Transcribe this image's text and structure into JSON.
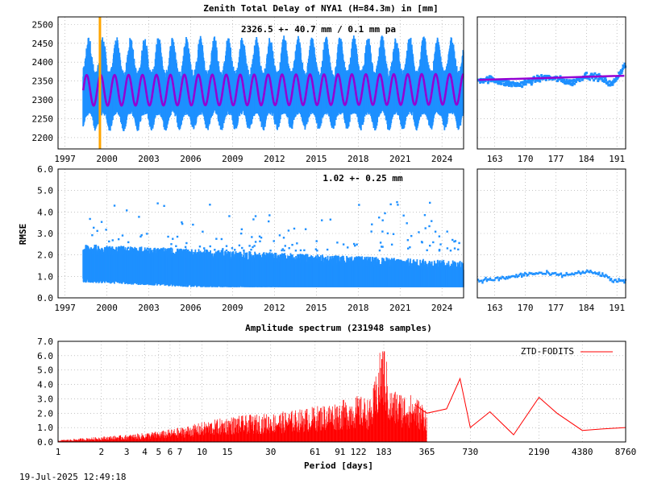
{
  "title": "Zenith Total Delay of NYA1 (H=84.3m) in [mm]",
  "timestamp": "19-Jul-2025 12:49:18",
  "colors": {
    "data": "#1e90ff",
    "fit": "#9400d3",
    "marker": "#ffa500",
    "spectrum": "#ff0000",
    "grid": "#a0a0a0"
  },
  "chart_data": [
    {
      "type": "scatter",
      "name": "ztd-timeseries",
      "annotation": "2326.5 +-  40.7 mm /  0.1 mm pa",
      "x_ticks": [
        "1997",
        "2000",
        "2003",
        "2006",
        "2009",
        "2012",
        "2015",
        "2018",
        "2021",
        "2024"
      ],
      "x_range": [
        1996.5,
        2025.55
      ],
      "y_ticks": [
        "2200",
        "2250",
        "2300",
        "2350",
        "2400",
        "2450",
        "2500"
      ],
      "ylim": [
        2170,
        2520
      ],
      "fit": {
        "mean": 2326.5,
        "amplitude": 40.7,
        "trend_mm_per_year": 0.1
      },
      "data_start": 1998.3,
      "vertical_marker_x": 1999.5,
      "grid": true
    },
    {
      "type": "scatter",
      "name": "ztd-recent",
      "x_ticks": [
        "163",
        "170",
        "177",
        "184",
        "191"
      ],
      "x_range": [
        159,
        193
      ],
      "values_approx": [
        2352,
        2355,
        2345,
        2340,
        2350,
        2360,
        2355,
        2345,
        2365,
        2360,
        2340,
        2395
      ],
      "grid": true
    },
    {
      "type": "scatter",
      "name": "rmse-timeseries",
      "ylabel": "RMSE",
      "annotation": "1.02 +-  0.25 mm",
      "x_ticks": [
        "1997",
        "2000",
        "2003",
        "2006",
        "2009",
        "2012",
        "2015",
        "2018",
        "2021",
        "2024"
      ],
      "x_range": [
        1996.5,
        2025.55
      ],
      "y_ticks": [
        "0.0",
        "1.0",
        "2.0",
        "3.0",
        "4.0",
        "5.0",
        "6.0"
      ],
      "ylim": [
        0,
        6
      ],
      "mean": 1.02,
      "std": 0.25,
      "grid": true
    },
    {
      "type": "line",
      "name": "rmse-recent",
      "x_ticks": [
        "163",
        "170",
        "177",
        "184",
        "191"
      ],
      "x_range": [
        159,
        193
      ],
      "values_approx": [
        0.8,
        0.85,
        0.9,
        1.0,
        1.1,
        1.15,
        1.1,
        1.05,
        1.15,
        1.2,
        1.1,
        0.8,
        0.75
      ],
      "grid": true
    },
    {
      "type": "line",
      "name": "amplitude-spectrum",
      "title": "Amplitude spectrum (231948 samples)",
      "xlabel": "Period [days]",
      "legend": "ZTD-FODITS",
      "legend_position": "top-right",
      "x_scale": "log",
      "x_ticks": [
        "1",
        "2",
        "3",
        "4",
        "5",
        "6",
        "7",
        "10",
        "15",
        "30",
        "61",
        "91",
        "122",
        "183",
        "365",
        "730",
        "2190",
        "4380",
        "8760"
      ],
      "x_range": [
        1,
        8760
      ],
      "y_ticks": [
        "0.0",
        "1.0",
        "2.0",
        "3.0",
        "4.0",
        "5.0",
        "6.0",
        "7.0"
      ],
      "ylim": [
        0,
        7
      ],
      "x": [
        1,
        2,
        3,
        5,
        7,
        10,
        15,
        20,
        30,
        45,
        61,
        91,
        122,
        150,
        183,
        200,
        300,
        365,
        500,
        620,
        730,
        1000,
        1460,
        2190,
        2920,
        4380,
        6000,
        8760
      ],
      "values": [
        0.1,
        0.3,
        0.4,
        0.6,
        0.8,
        1.1,
        1.4,
        1.5,
        1.6,
        1.8,
        2.0,
        2.3,
        2.6,
        2.4,
        6.2,
        3.0,
        2.6,
        2.0,
        2.3,
        4.4,
        1.0,
        2.1,
        0.5,
        3.1,
        2.0,
        0.8,
        0.9,
        1.0
      ],
      "grid": true
    }
  ]
}
